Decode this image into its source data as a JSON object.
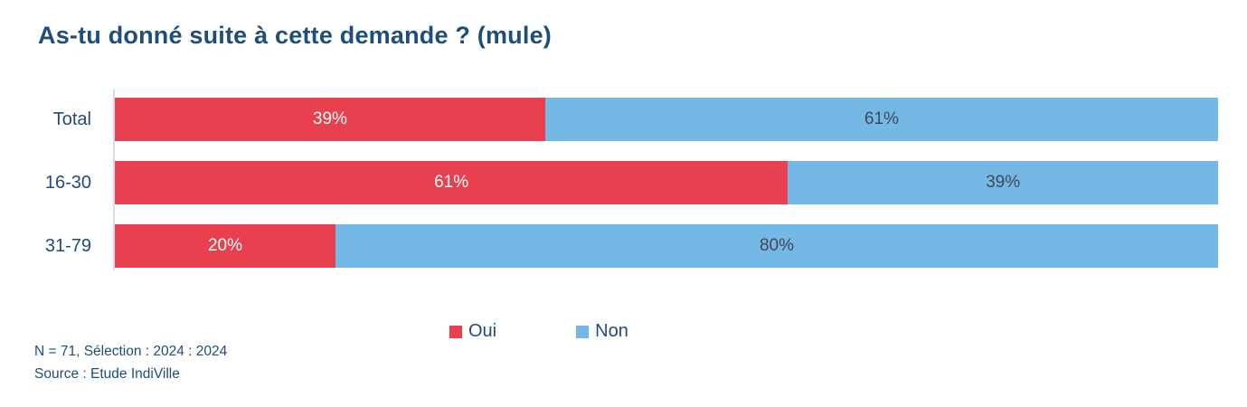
{
  "title": "As-tu donné suite à cette demande ? (mule)",
  "chart_data": {
    "type": "bar",
    "orientation": "horizontal",
    "stacked": true,
    "unit": "percent",
    "xlim": [
      0,
      100
    ],
    "grid": false,
    "legend_position": "bottom-center",
    "title": "As-tu donné suite à cette demande ? (mule)",
    "categories": [
      "Total",
      "16-30",
      "31-79"
    ],
    "series": [
      {
        "name": "Oui",
        "color": "#E9404F",
        "label_color": "#FFFFFF",
        "values": [
          39,
          61,
          20
        ],
        "labels": [
          "39%",
          "61%",
          "20%"
        ]
      },
      {
        "name": "Non",
        "color": "#74B8E5",
        "label_color": "#454655",
        "values": [
          61,
          39,
          80
        ],
        "labels": [
          "61%",
          "39%",
          "80%"
        ]
      }
    ]
  },
  "legend": {
    "items": [
      {
        "label": "Oui",
        "color": "#E9404F"
      },
      {
        "label": "Non",
        "color": "#74B8E5"
      }
    ]
  },
  "footer": {
    "line1": "N = 71, Sélection : 2024 : 2024",
    "line2": "Source : Etude IndiVille"
  },
  "colors": {
    "title_text": "#1F4E79",
    "category_text": "#24497B",
    "axis_line": "#D9DEE4",
    "label_on_oui": "#FFFFFF",
    "label_on_non": "#454655"
  }
}
